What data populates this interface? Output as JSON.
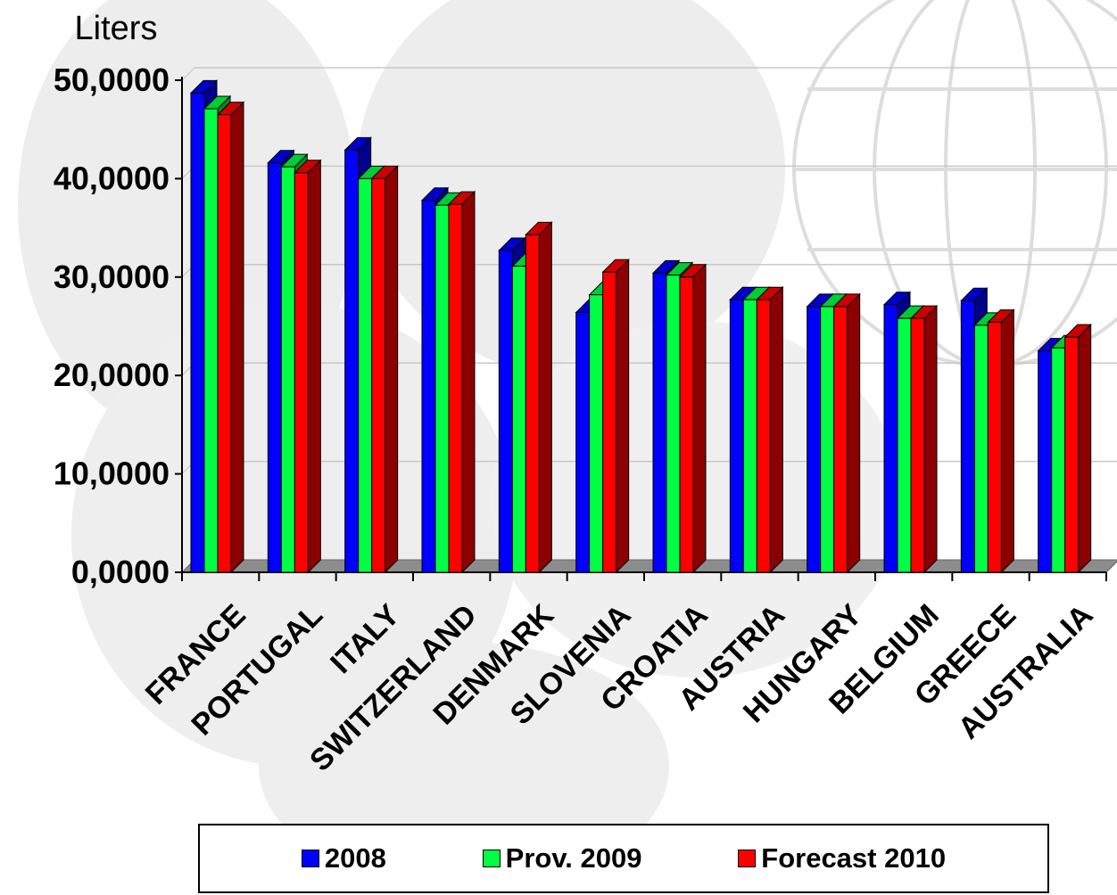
{
  "chart_data": {
    "type": "bar",
    "ylabel": "Liters",
    "xlabel": "",
    "ylim": [
      0,
      50
    ],
    "yticks": [
      "0,0000",
      "10,0000",
      "20,0000",
      "30,0000",
      "40,0000",
      "50,0000"
    ],
    "grid": true,
    "legend_position": "bottom",
    "categories": [
      "FRANCE",
      "PORTUGAL",
      "ITALY",
      "SWITZERLAND",
      "DENMARK",
      "SLOVENIA",
      "CROATIA",
      "AUSTRIA",
      "HUNGARY",
      "BELGIUM",
      "GREECE",
      "AUSTRALIA"
    ],
    "series": [
      {
        "name": "2008",
        "color": "#0000ff",
        "values": [
          48.7,
          41.6,
          42.9,
          37.8,
          32.7,
          26.4,
          30.4,
          27.7,
          27.0,
          27.2,
          27.6,
          22.5
        ]
      },
      {
        "name": "Prov. 2009",
        "color": "#00ff44",
        "values": [
          47.1,
          41.2,
          40.0,
          37.3,
          31.1,
          28.2,
          30.2,
          27.7,
          27.0,
          25.8,
          25.1,
          22.8
        ]
      },
      {
        "name": "Forecast 2010",
        "color": "#ff0000",
        "values": [
          46.5,
          40.6,
          40.0,
          37.4,
          34.3,
          30.5,
          30.0,
          27.7,
          27.0,
          25.8,
          25.4,
          23.9
        ]
      }
    ]
  }
}
